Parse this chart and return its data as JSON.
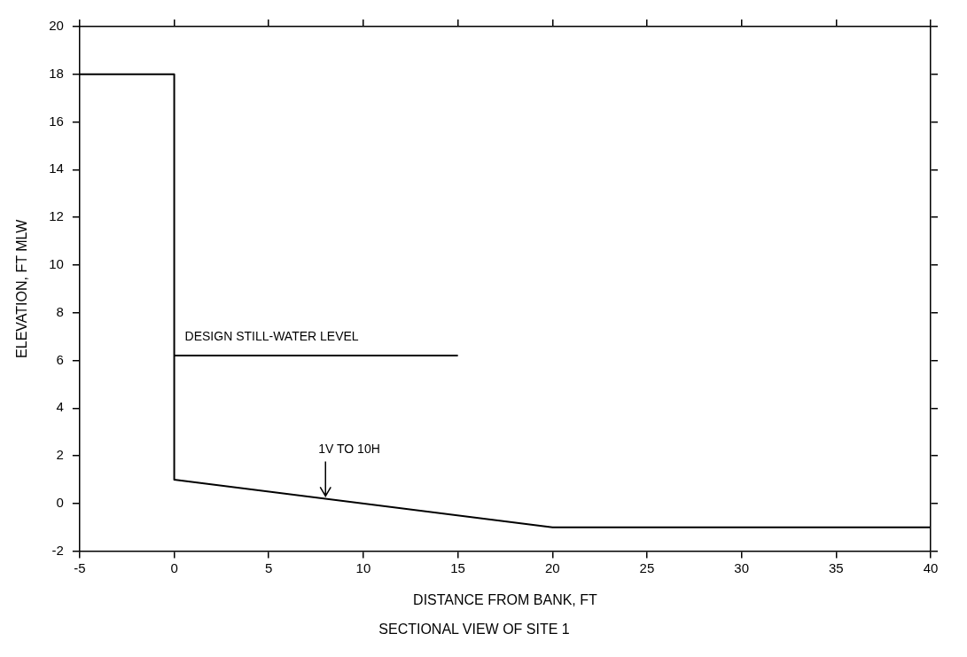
{
  "chart_data": {
    "type": "line",
    "title": "SECTIONAL VIEW OF SITE 1",
    "xlabel": "DISTANCE FROM BANK, FT",
    "ylabel": "ELEVATION, FT MLW",
    "xlim": [
      -5,
      40
    ],
    "xticks": [
      -5,
      0,
      5,
      10,
      15,
      20,
      25,
      30,
      35,
      40
    ],
    "ylim": [
      -2,
      20
    ],
    "yticks": [
      -2,
      0,
      2,
      4,
      6,
      8,
      10,
      12,
      14,
      16,
      18,
      20
    ],
    "grid": false,
    "legend": false,
    "marker": "none",
    "line_style": "solid",
    "series": [
      {
        "x": [
          -5,
          0,
          0,
          20,
          40
        ],
        "values": [
          18,
          18,
          1,
          -1,
          -1
        ],
        "color": "#000000"
      },
      {
        "name": "DESIGN STILL-WATER LEVEL",
        "x": [
          0,
          15
        ],
        "values": [
          6.2,
          6.2
        ],
        "color": "#000000"
      }
    ],
    "annotations": [
      {
        "text": "1V TO 10H",
        "x": 8,
        "y": 0.2
      }
    ]
  }
}
